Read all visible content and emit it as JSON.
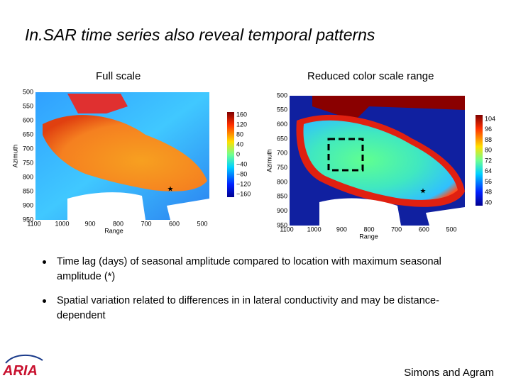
{
  "title": "In.SAR time series also reveal temporal patterns",
  "panels": [
    {
      "caption": "Full scale",
      "y_axis_label": "Azimuth",
      "x_axis_label": "Range",
      "y_ticks": [
        "500",
        "550",
        "600",
        "650",
        "700",
        "750",
        "800",
        "850",
        "900",
        "950"
      ],
      "x_ticks": [
        "1100",
        "1000",
        "900",
        "800",
        "700",
        "600",
        "500"
      ],
      "colorbar_ticks": [
        "160",
        "120",
        "80",
        "40",
        "0",
        "−40",
        "−80",
        "−120",
        "−160"
      ]
    },
    {
      "caption": "Reduced color scale range",
      "y_axis_label": "Azimuth",
      "x_axis_label": "Range",
      "y_ticks": [
        "500",
        "550",
        "600",
        "650",
        "700",
        "750",
        "800",
        "850",
        "900",
        "950"
      ],
      "x_ticks": [
        "1100",
        "1000",
        "900",
        "800",
        "700",
        "600",
        "500"
      ],
      "colorbar_ticks": [
        "104",
        "96",
        "88",
        "80",
        "72",
        "64",
        "56",
        "48",
        "40"
      ]
    }
  ],
  "bullets": [
    "Time lag  (days) of seasonal amplitude compared to location with maximum seasonal amplitude (*)",
    "Spatial variation related to differences in in lateral conductivity and may be distance-dependent"
  ],
  "logo": "ARIA",
  "footer": "Simons and Agram"
}
